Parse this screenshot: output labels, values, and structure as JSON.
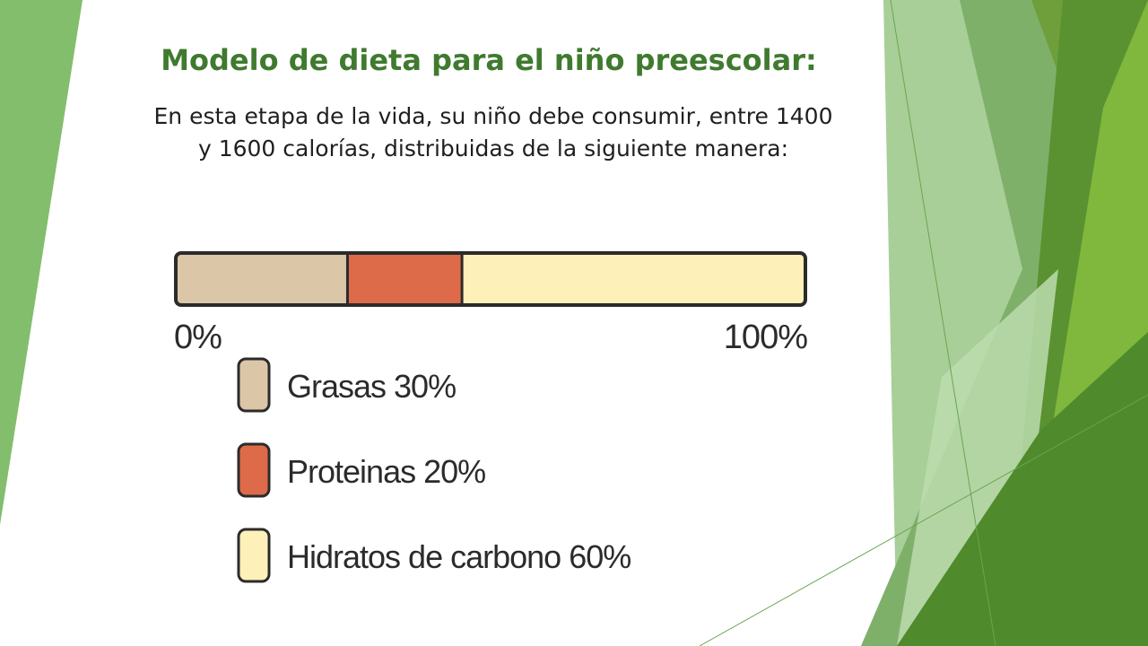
{
  "slide": {
    "title": "Modelo de dieta para el niño preescolar:",
    "subtitle_line1": "En esta etapa de la vida, su niño debe consumir, entre 1400",
    "subtitle_line2": "y 1600 calorías, distribuidas de la siguiente manera:"
  },
  "colors": {
    "title": "#3f7a2f",
    "green_light": "#8cc474",
    "green_mid": "#5f9e45",
    "green_dark": "#4f8a2c",
    "green_bright": "#7bb33a",
    "green_pale": "#cfe3c3"
  },
  "chart_data": {
    "type": "bar",
    "orientation": "horizontal-stacked",
    "title": "",
    "xlabel": "",
    "ylabel": "",
    "xlim": [
      0,
      100
    ],
    "tick_labels": [
      "0%",
      "100%"
    ],
    "series": [
      {
        "name": "Grasas 30%",
        "value": 30,
        "color": "#dcc6a8"
      },
      {
        "name": "Proteinas 20%",
        "value": 20,
        "color": "#dd6b4a"
      },
      {
        "name": "Hidratos de carbono 60%",
        "value": 60,
        "color": "#fdf0b8"
      }
    ],
    "legend_position": "bottom-left"
  }
}
